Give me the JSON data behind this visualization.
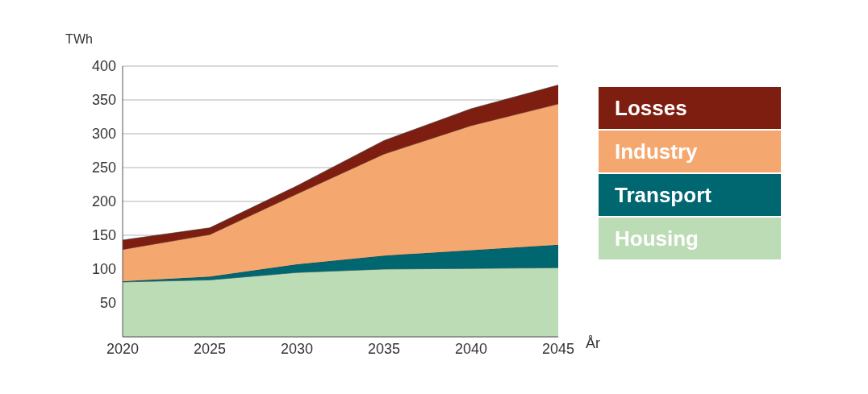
{
  "chart_data": {
    "type": "area",
    "stacked": true,
    "ylabel": "TWh",
    "xlabel": "År",
    "x": [
      2020,
      2025,
      2030,
      2035,
      2040,
      2045
    ],
    "series": [
      {
        "name": "Housing",
        "color": "#bcdcb6",
        "values": [
          81,
          84,
          95,
          100,
          101,
          102
        ]
      },
      {
        "name": "Transport",
        "color": "#006670",
        "values": [
          1,
          5,
          12,
          20,
          27,
          34
        ]
      },
      {
        "name": "Industry",
        "color": "#f4a76e",
        "values": [
          47,
          62,
          104,
          150,
          184,
          208
        ]
      },
      {
        "name": "Losses",
        "color": "#7e1e10",
        "values": [
          14,
          10,
          12,
          20,
          25,
          28
        ]
      }
    ],
    "xlim": [
      2020,
      2045
    ],
    "xticks": [
      2020,
      2025,
      2030,
      2035,
      2040,
      2045
    ],
    "ylim": [
      0,
      400
    ],
    "yticks": [
      50,
      100,
      150,
      200,
      250,
      300,
      350,
      400
    ],
    "grid": "y",
    "legend": "right"
  }
}
